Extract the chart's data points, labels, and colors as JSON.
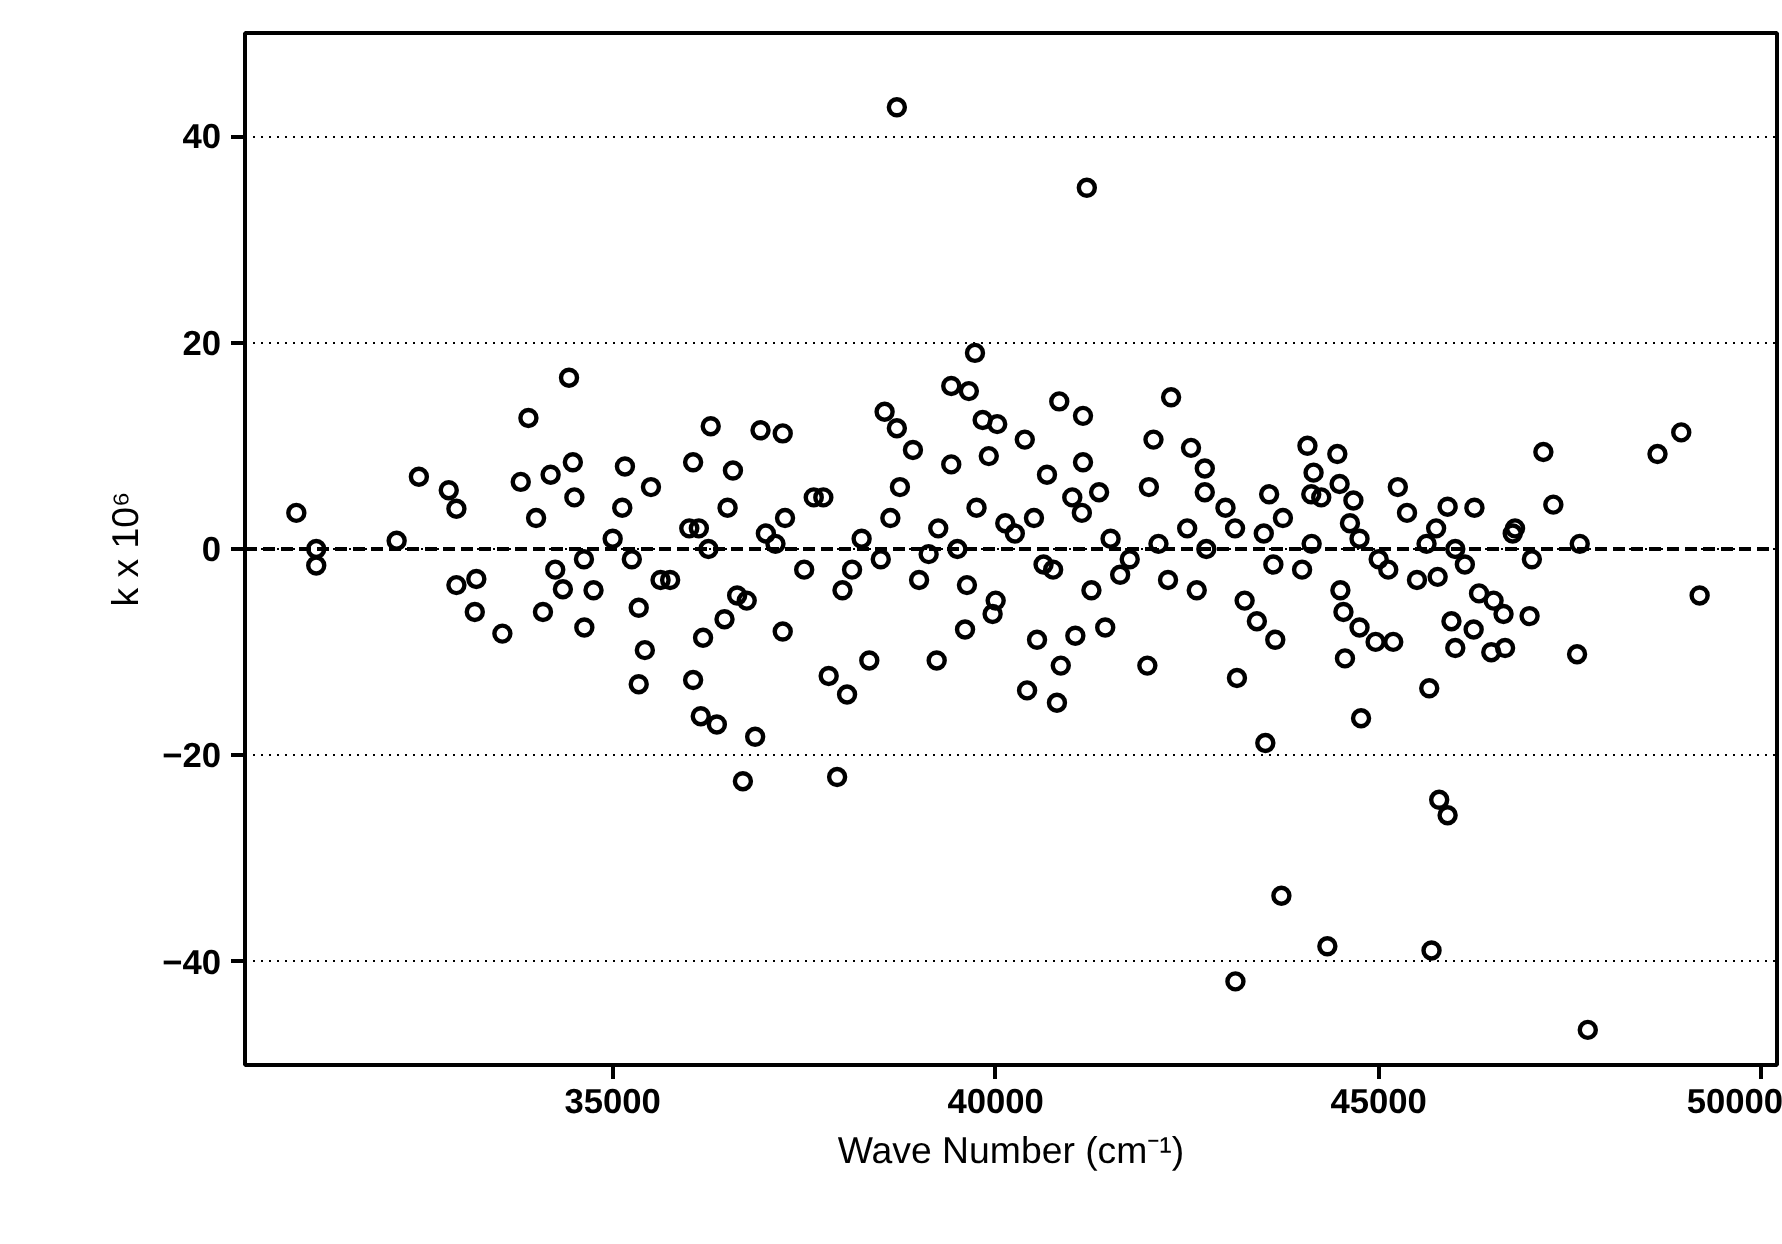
{
  "chart_data": {
    "type": "scatter",
    "xlabel": "Wave Number (cm⁻¹)",
    "ylabel": "k x 10⁶",
    "xlim": [
      30200,
      50200
    ],
    "ylim": [
      -50,
      50
    ],
    "xticks": [
      35000,
      40000,
      45000,
      50000
    ],
    "yticks": [
      -40,
      -20,
      0,
      20,
      40
    ],
    "grid": "y",
    "marker": "circle",
    "color": "#000000",
    "ref_lines": [
      {
        "axis": "y",
        "value": 0,
        "line_style": "dashed",
        "color": "#000000"
      }
    ],
    "x": [
      30870,
      31130,
      31130,
      32180,
      32470,
      32860,
      32960,
      33800,
      33900,
      34430,
      34190,
      36280,
      36930,
      36050,
      36570,
      34480,
      35160,
      32960,
      33220,
      33200,
      33560,
      34090,
      34350,
      34630,
      35340,
      35420,
      35340,
      36050,
      36180,
      36460,
      36150,
      36360,
      36860,
      36700,
      38710,
      41190,
      39730,
      39420,
      39650,
      40830,
      41140,
      42290,
      37220,
      38550,
      38710,
      38920,
      39830,
      40020,
      40380,
      42060,
      42550,
      42730,
      39420,
      39910,
      40670,
      41140,
      41350,
      42730,
      44070,
      44460,
      47150,
      48640,
      48950,
      47280,
      44490,
      44150,
      44120,
      44670,
      43570,
      45370,
      45900,
      46780,
      49190,
      47590,
      46970,
      46630,
      46650,
      46470,
      46240,
      46000,
      45660,
      44770,
      45790,
      45900,
      43730,
      44330,
      45690,
      47730,
      44560,
      44960,
      45190,
      44750,
      43650,
      44540,
      45950,
      45770,
      46310,
      43520,
      43130,
      37930,
      37820,
      38060,
      38350,
      39230,
      40410,
      40800,
      40850,
      41980,
      43150,
      39600,
      37220,
      41430,
      40540,
      41040,
      43410,
      39960,
      34000,
      34250,
      34500,
      34750,
      35000,
      35250,
      35500,
      35750,
      36000,
      36250,
      36500,
      36750,
      37000,
      37250,
      37500,
      37750,
      38000,
      38250,
      38500,
      38750,
      39000,
      39250,
      39500,
      39750,
      40000,
      40250,
      40500,
      40750,
      41000,
      41250,
      41500,
      41750,
      42000,
      42250,
      42500,
      42750,
      43000,
      43250,
      43500,
      43750,
      44000,
      44250,
      44500,
      44750,
      45000,
      45250,
      45500,
      45750,
      46000,
      46250,
      46500,
      46750,
      47000,
      34625,
      35125,
      35625,
      36125,
      36625,
      37125,
      37625,
      38125,
      38625,
      39125,
      39625,
      40125,
      40625,
      41125,
      41625,
      42125,
      42625,
      43125,
      43625,
      44125,
      44625,
      45125,
      45625,
      46125,
      47625
    ],
    "values": [
      3.5,
      0,
      -1.6,
      0.8,
      7,
      5.7,
      3.9,
      6.5,
      12.7,
      16.6,
      7.2,
      11.9,
      11.5,
      8.4,
      7.6,
      8.4,
      8.0,
      -3.5,
      -2.9,
      -6.1,
      -8.2,
      -6.1,
      -3.9,
      -7.6,
      -5.7,
      -9.8,
      -13.1,
      -12.7,
      -8.6,
      -6.8,
      -16.2,
      -17,
      -18.2,
      -22.5,
      42.8,
      35.0,
      19.0,
      15.8,
      15.3,
      14.3,
      12.9,
      14.7,
      11.2,
      13.3,
      11.7,
      9.6,
      12.5,
      12.1,
      10.6,
      10.6,
      9.8,
      7.8,
      8.2,
      9.0,
      7.2,
      8.4,
      5.5,
      5.5,
      10.0,
      9.2,
      9.4,
      9.2,
      11.3,
      4.3,
      6.3,
      7.4,
      5.3,
      4.7,
      5.3,
      3.5,
      4.1,
      2.0,
      -4.5,
      -10.2,
      -6.5,
      -6.3,
      -9.6,
      -10.0,
      -7.8,
      -9.6,
      -13.5,
      -16.4,
      -24.3,
      -25.8,
      -33.6,
      -38.5,
      -38.9,
      -46.6,
      -10.6,
      -9.0,
      -9.0,
      -7.6,
      -8.8,
      -6.1,
      -7.0,
      -2.7,
      -4.3,
      -18.8,
      -41.9,
      -22.1,
      -12.3,
      -14.1,
      -10.8,
      -10.8,
      -13.7,
      -14.9,
      -11.3,
      -11.3,
      -12.5,
      -7.8,
      -8.0,
      -7.6,
      -8.8,
      -8.4,
      -7.0,
      -6.3,
      3,
      -2,
      5,
      -4,
      1,
      -1,
      6,
      -3,
      2,
      0,
      4,
      -5,
      1.5,
      3,
      -2,
      5,
      -4,
      1,
      -1,
      6,
      -3,
      2,
      0,
      4,
      -5,
      1.5,
      3,
      -2,
      5,
      -4,
      1,
      -1,
      6,
      -3,
      2,
      0,
      4,
      -5,
      1.5,
      3,
      -2,
      5,
      -4,
      1,
      -1,
      6,
      -3,
      2,
      0,
      4,
      -5,
      1.5,
      -1,
      -1,
      4,
      -3,
      2,
      -4.5,
      0.5,
      5,
      -2,
      3,
      -0.5,
      -3.5,
      2.5,
      -1.5,
      3.5,
      -2.5,
      0.5,
      -4,
      2,
      -1.5,
      0.5,
      2.5,
      -2,
      0.5,
      -1.5,
      0.5
    ]
  }
}
